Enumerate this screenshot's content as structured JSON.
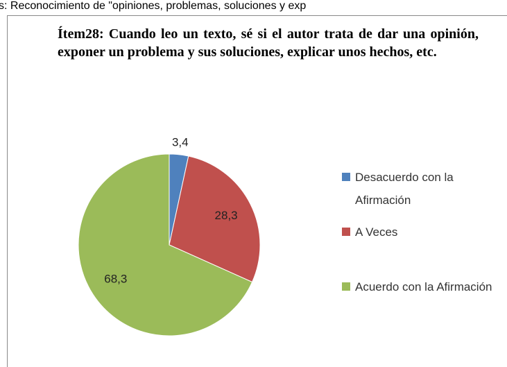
{
  "caption": "s: Reconocimiento de  \"opiniones, problemas, soluciones y exp",
  "chart_data": {
    "type": "pie",
    "title": "Ítem28: Cuando leo un texto, sé si el autor trata de dar una opinión, exponer un problema y sus soluciones, explicar unos hechos, etc.",
    "categories": [
      "Desacuerdo con la Afirmación",
      "A Veces",
      "Acuerdo con la Afirmación"
    ],
    "values": [
      3.4,
      28.3,
      68.3
    ],
    "value_labels": [
      "3,4",
      "28,3",
      "68,3"
    ],
    "colors": [
      "#4f81bd",
      "#c0504d",
      "#9bbb59"
    ],
    "legend": "right"
  }
}
